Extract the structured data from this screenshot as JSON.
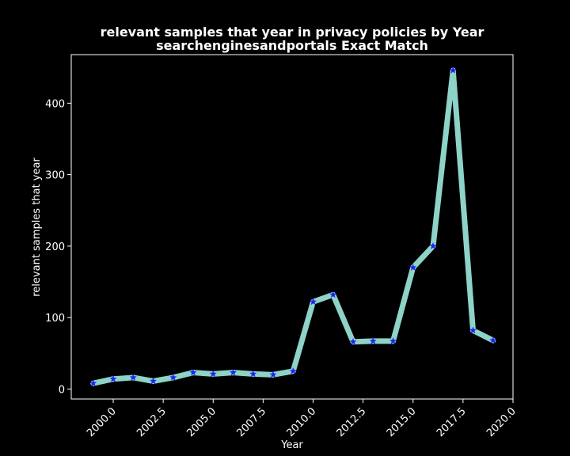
{
  "chart_data": {
    "type": "line",
    "title": "relevant samples that year in privacy policies by Year",
    "subtitle": "searchenginesandportals Exact Match",
    "xlabel": "Year",
    "ylabel": "relevant samples that year",
    "xlim": [
      1997.9,
      2020.0
    ],
    "ylim": [
      -14,
      468
    ],
    "xticks": [
      2000.0,
      2002.5,
      2005.0,
      2007.5,
      2010.0,
      2012.5,
      2015.0,
      2017.5,
      2020.0
    ],
    "xtick_labels": [
      "2000.0",
      "2002.5",
      "2005.0",
      "2007.5",
      "2010.0",
      "2012.5",
      "2015.0",
      "2017.5",
      "2020.0"
    ],
    "yticks": [
      0,
      100,
      200,
      300,
      400
    ],
    "ytick_labels": [
      "0",
      "100",
      "200",
      "300",
      "400"
    ],
    "grid": false,
    "legend": "none",
    "colors": {
      "background": "#000000",
      "line": "#8dd3c7",
      "marker": "#1f1fff",
      "text": "#ffffff",
      "axes": "#ffffff"
    },
    "series": [
      {
        "x": [
          1999,
          2000,
          2001,
          2002,
          2003,
          2004,
          2005,
          2006,
          2007,
          2008,
          2009,
          2010,
          2011,
          2012,
          2013,
          2014,
          2015,
          2016,
          2017,
          2018,
          2019
        ],
        "y": [
          8,
          14,
          16,
          11,
          16,
          23,
          21,
          23,
          21,
          20,
          25,
          122,
          132,
          66,
          67,
          67,
          170,
          200,
          446,
          82,
          68
        ]
      }
    ]
  }
}
